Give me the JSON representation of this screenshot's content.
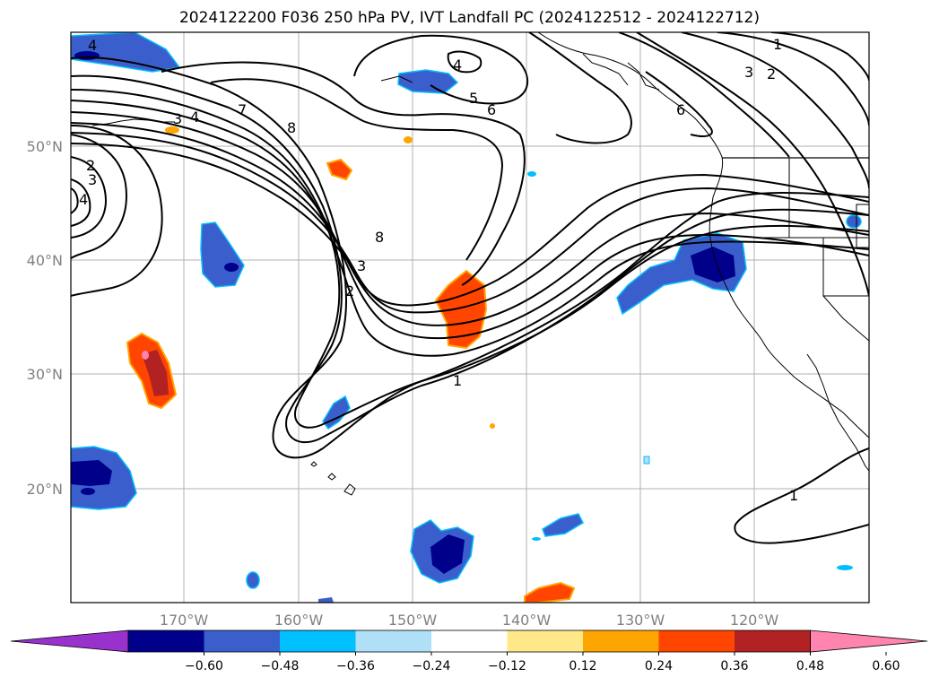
{
  "title": "2024122200 F036 250 hPa PV, IVT Landfall PC (2024122512 - 2024122712)",
  "lon_labels": [
    "170°W",
    "160°W",
    "150°W",
    "140°W",
    "130°W",
    "120°W"
  ],
  "lat_labels": [
    "50°N",
    "40°N",
    "30°N",
    "20°N"
  ],
  "colorbar": {
    "ticks": [
      "−0.60",
      "−0.48",
      "−0.36",
      "−0.24",
      "−0.12",
      "0.12",
      "0.24",
      "0.36",
      "0.48",
      "0.60"
    ],
    "colors": [
      "#9932cc",
      "#00008b",
      "#3a5fcd",
      "#00bfff",
      "#b0e0f8",
      "#ffffff",
      "#ffe88a",
      "#ffa500",
      "#ff4500",
      "#b22222",
      "#ff85b0"
    ]
  },
  "contour_labels": [
    "1",
    "2",
    "3",
    "4",
    "5",
    "6",
    "7",
    "8"
  ]
}
